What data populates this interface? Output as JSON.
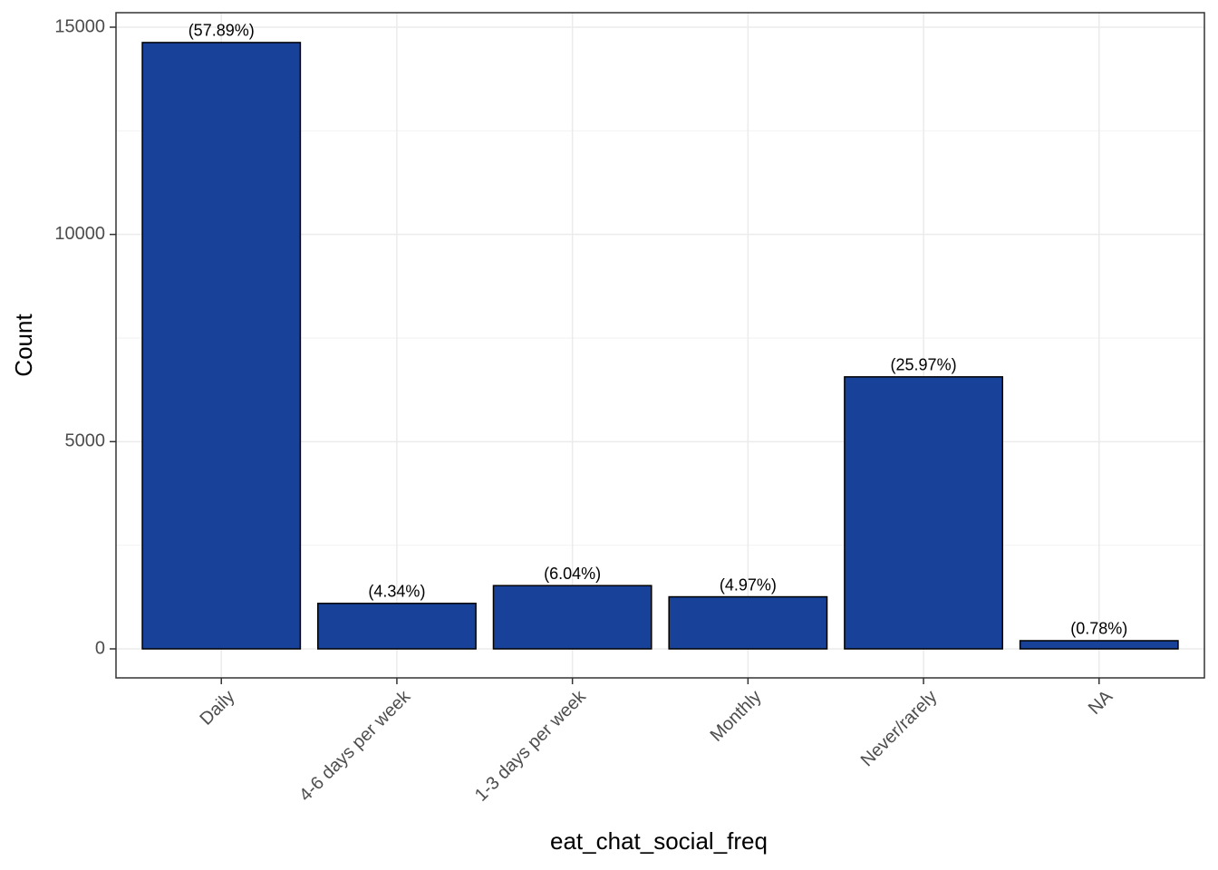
{
  "chart_data": {
    "type": "bar",
    "x_label": "eat_chat_social_freq",
    "y_label": "Count",
    "categories": [
      "Daily",
      "4-6 days per week",
      "1-3 days per week",
      "Monthly",
      "Never/rarely",
      "NA"
    ],
    "values": [
      14630,
      1097,
      1526,
      1256,
      6563,
      197
    ],
    "labels": [
      "(57.89%)",
      "(4.34%)",
      "(6.04%)",
      "(4.97%)",
      "(25.97%)",
      "(0.78%)"
    ],
    "color": "#18429a",
    "ylim": [
      -700,
      15350
    ],
    "yticks": [
      0,
      5000,
      10000,
      15000
    ],
    "grid": true
  }
}
